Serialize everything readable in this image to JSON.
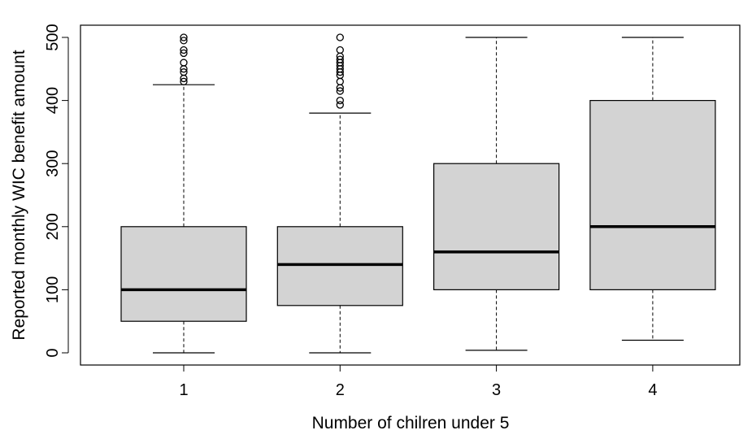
{
  "chart_data": {
    "type": "boxplot",
    "title": "",
    "xlabel": "Number of chilren under 5",
    "ylabel": "Reported monthly WIC benefit amount",
    "categories": [
      "1",
      "2",
      "3",
      "4"
    ],
    "ylim": [
      -20,
      520
    ],
    "yticks": [
      0,
      100,
      200,
      300,
      400,
      500
    ],
    "grid": false,
    "box_fill": "#d3d3d3",
    "line_color": "#000000",
    "boxes": [
      {
        "category": "1",
        "whisker_low": 0,
        "q1": 50,
        "median": 100,
        "q3": 200,
        "whisker_high": 425,
        "outliers": [
          430,
          435,
          445,
          450,
          460,
          475,
          480,
          495,
          500
        ]
      },
      {
        "category": "2",
        "whisker_low": 0,
        "q1": 75,
        "median": 140,
        "q3": 200,
        "whisker_high": 380,
        "outliers": [
          393,
          400,
          415,
          420,
          430,
          440,
          445,
          450,
          455,
          460,
          465,
          470,
          480,
          500
        ]
      },
      {
        "category": "3",
        "whisker_low": 4,
        "q1": 100,
        "median": 160,
        "q3": 300,
        "whisker_high": 500,
        "outliers": []
      },
      {
        "category": "4",
        "whisker_low": 20,
        "q1": 100,
        "median": 200,
        "q3": 400,
        "whisker_high": 500,
        "outliers": []
      }
    ]
  }
}
